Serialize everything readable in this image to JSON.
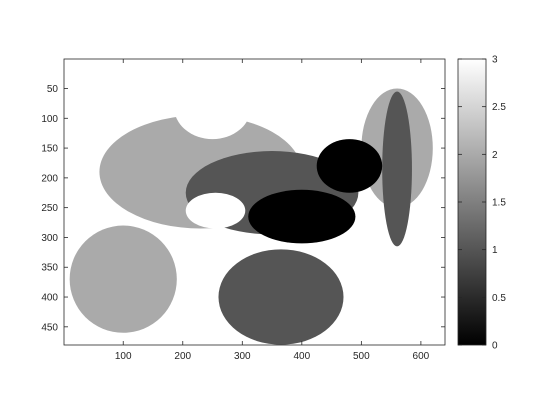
{
  "chart_data": {
    "type": "heatmap",
    "title": "",
    "xlabel": "",
    "ylabel": "",
    "colormap": "gray",
    "quantization_levels": [
      0,
      1,
      2,
      3
    ],
    "level_colors": [
      "#000000",
      "#555555",
      "#aaaaaa",
      "#ffffff"
    ],
    "xlim": [
      0.5,
      640.5
    ],
    "ylim": [
      0.5,
      480.5
    ],
    "y_reversed": true,
    "x_ticks": [
      100,
      200,
      300,
      400,
      500,
      600
    ],
    "x_tick_labels": [
      "100",
      "200",
      "300",
      "400",
      "500",
      "600"
    ],
    "y_ticks": [
      50,
      100,
      150,
      200,
      250,
      300,
      350,
      400,
      450
    ],
    "y_tick_labels": [
      "50",
      "100",
      "150",
      "200",
      "250",
      "300",
      "350",
      "400",
      "450"
    ],
    "colorbar": {
      "range": [
        0,
        3
      ],
      "ticks": [
        0,
        0.5,
        1,
        1.5,
        2,
        2.5,
        3
      ],
      "tick_labels": [
        "0",
        "0.5",
        "1",
        "1.5",
        "2",
        "2.5",
        "3"
      ]
    },
    "image_description_regions": [
      {
        "shape": "rect",
        "x": [
          1,
          640
        ],
        "y": [
          1,
          480
        ],
        "level": 3
      },
      {
        "shape": "ellipse",
        "cx": 230,
        "cy": 190,
        "rx": 170,
        "ry": 95,
        "level": 2
      },
      {
        "shape": "ellipse",
        "cx": 100,
        "cy": 370,
        "rx": 90,
        "ry": 90,
        "level": 2
      },
      {
        "shape": "ellipse",
        "cx": 560,
        "cy": 150,
        "rx": 60,
        "ry": 100,
        "level": 2
      },
      {
        "shape": "ellipse",
        "cx": 250,
        "cy": 80,
        "rx": 65,
        "ry": 55,
        "level": 3
      },
      {
        "shape": "ellipse",
        "cx": 350,
        "cy": 225,
        "rx": 145,
        "ry": 70,
        "level": 1
      },
      {
        "shape": "ellipse",
        "cx": 400,
        "cy": 265,
        "rx": 90,
        "ry": 45,
        "level": 0
      },
      {
        "shape": "ellipse",
        "cx": 255,
        "cy": 255,
        "rx": 50,
        "ry": 30,
        "level": 3
      },
      {
        "shape": "ellipse",
        "cx": 365,
        "cy": 400,
        "rx": 105,
        "ry": 80,
        "level": 1
      },
      {
        "shape": "ellipse",
        "cx": 560,
        "cy": 185,
        "rx": 25,
        "ry": 130,
        "level": 1
      },
      {
        "shape": "ellipse",
        "cx": 480,
        "cy": 180,
        "rx": 55,
        "ry": 45,
        "level": 0
      }
    ]
  }
}
